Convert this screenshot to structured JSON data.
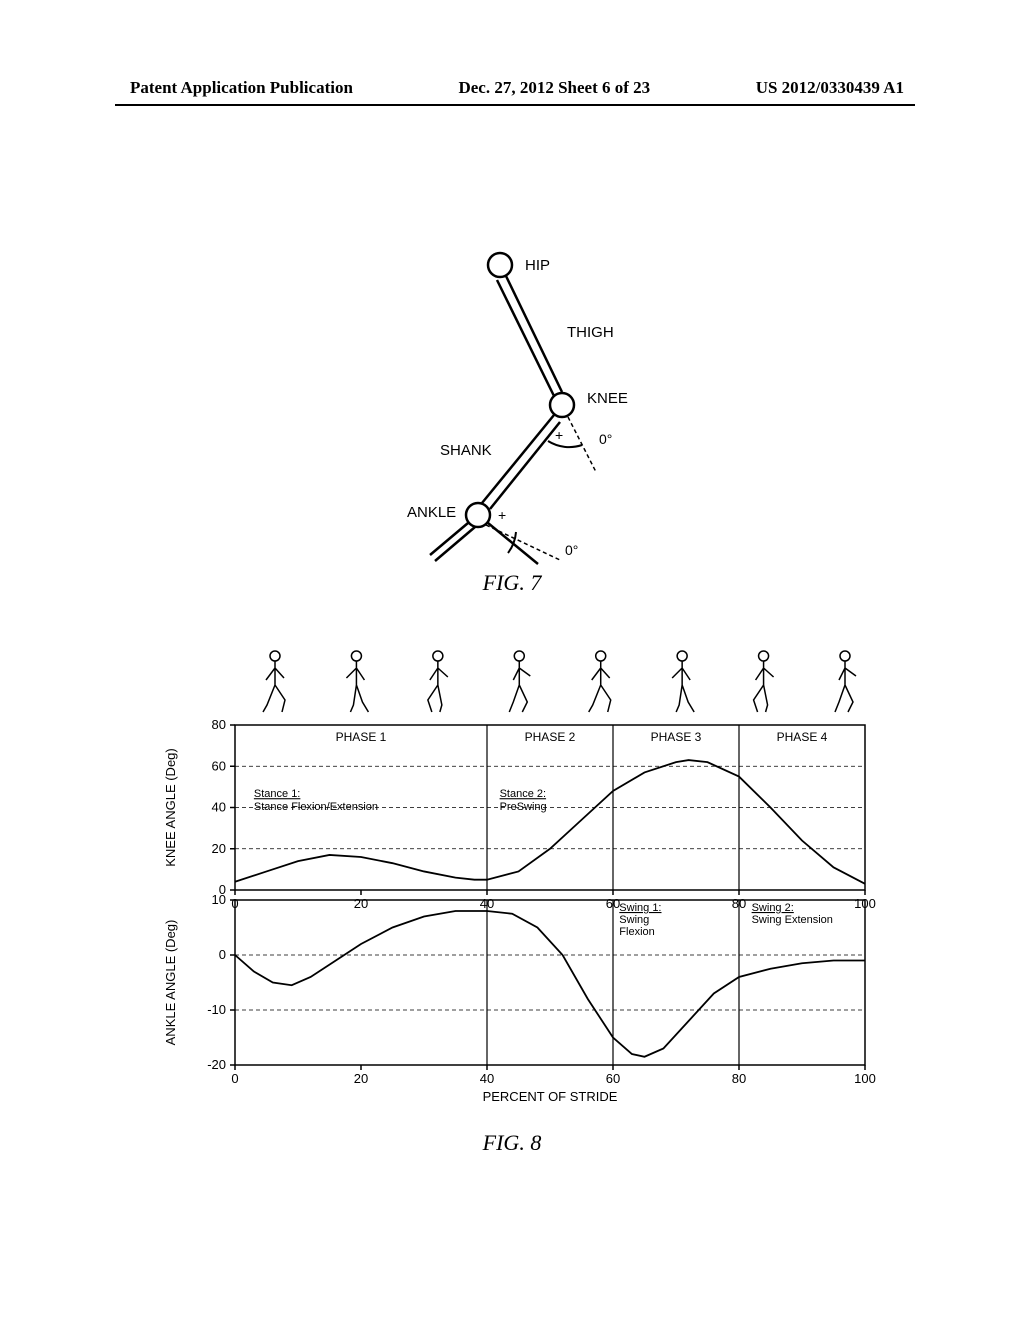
{
  "header": {
    "left": "Patent Application Publication",
    "center": "Dec. 27, 2012  Sheet 6 of 23",
    "right": "US 2012/0330439 A1"
  },
  "fig7": {
    "caption": "FIG. 7",
    "labels": {
      "hip": "HIP",
      "thigh": "THIGH",
      "knee": "KNEE",
      "shank": "SHANK",
      "ankle": "ANKLE",
      "zero_knee": "0°",
      "zero_ankle": "0°",
      "plus": "+"
    },
    "line_width": 2.5,
    "colors": {
      "stroke": "#000000",
      "fill": "#ffffff"
    }
  },
  "fig8": {
    "caption": "FIG. 8",
    "colors": {
      "axis": "#000000",
      "curve": "#000000",
      "grid": "#000000",
      "bg": "#ffffff"
    },
    "line_width": 1.8,
    "dash": "4,3",
    "gait_figures": 8,
    "knee": {
      "ylabel": "KNEE ANGLE (Deg)",
      "ylim": [
        0,
        80
      ],
      "yticks": [
        0,
        20,
        40,
        60,
        80
      ],
      "xlim": [
        0,
        100
      ],
      "xticks": [
        0,
        20,
        40,
        60,
        80,
        100
      ],
      "phase_dividers": [
        40,
        60,
        80
      ],
      "phase_labels": [
        "PHASE 1",
        "PHASE 2",
        "PHASE 3",
        "PHASE 4"
      ],
      "stance1_title": "Stance 1:",
      "stance1_text": "Stance Flexion/Extension",
      "stance2_title": "Stance 2:",
      "stance2_text": "PreSwing",
      "data": [
        [
          0,
          4
        ],
        [
          5,
          9
        ],
        [
          10,
          14
        ],
        [
          15,
          17
        ],
        [
          20,
          16
        ],
        [
          25,
          13
        ],
        [
          30,
          9
        ],
        [
          35,
          6
        ],
        [
          38,
          5
        ],
        [
          40,
          5
        ],
        [
          45,
          9
        ],
        [
          50,
          20
        ],
        [
          55,
          34
        ],
        [
          60,
          48
        ],
        [
          65,
          57
        ],
        [
          70,
          62
        ],
        [
          72,
          63
        ],
        [
          75,
          62
        ],
        [
          80,
          55
        ],
        [
          85,
          40
        ],
        [
          90,
          24
        ],
        [
          95,
          11
        ],
        [
          100,
          3
        ]
      ]
    },
    "ankle": {
      "ylabel": "ANKLE ANGLE (Deg)",
      "xlabel": "PERCENT OF STRIDE",
      "ylim": [
        -20,
        10
      ],
      "yticks": [
        -20,
        -10,
        0,
        10
      ],
      "xlim": [
        0,
        100
      ],
      "xticks": [
        0,
        20,
        40,
        60,
        80,
        100
      ],
      "phase_dividers": [
        40,
        60,
        80
      ],
      "swing1_title": "Swing 1:",
      "swing1_text1": "Swing",
      "swing1_text2": "Flexion",
      "swing2_title": "Swing 2:",
      "swing2_text": "Swing Extension",
      "data": [
        [
          0,
          0
        ],
        [
          3,
          -3
        ],
        [
          6,
          -5
        ],
        [
          9,
          -5.5
        ],
        [
          12,
          -4
        ],
        [
          16,
          -1
        ],
        [
          20,
          2
        ],
        [
          25,
          5
        ],
        [
          30,
          7
        ],
        [
          35,
          8
        ],
        [
          40,
          8
        ],
        [
          44,
          7.5
        ],
        [
          48,
          5
        ],
        [
          52,
          0
        ],
        [
          56,
          -8
        ],
        [
          60,
          -15
        ],
        [
          63,
          -18
        ],
        [
          65,
          -18.5
        ],
        [
          68,
          -17
        ],
        [
          72,
          -12
        ],
        [
          76,
          -7
        ],
        [
          80,
          -4
        ],
        [
          85,
          -2.5
        ],
        [
          90,
          -1.5
        ],
        [
          95,
          -1
        ],
        [
          100,
          -1
        ]
      ]
    }
  }
}
